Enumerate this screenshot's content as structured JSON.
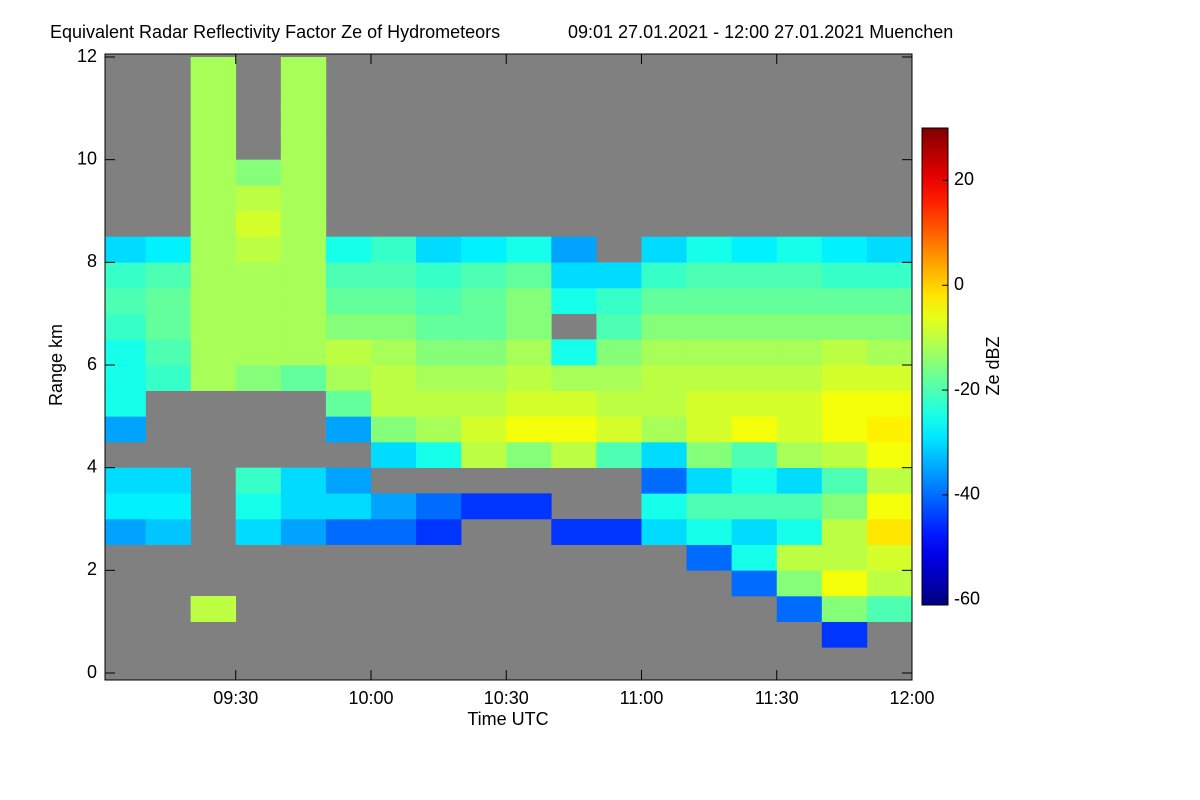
{
  "chart_data": {
    "type": "heatmap",
    "title": "Equivalent Radar Reflectivity Factor Ze of Hydrometeors",
    "subtitle": "09:01 27.01.2021 - 12:00 27.01.2021 Muenchen",
    "x_label": "Time UTC",
    "y_label": "Range km",
    "colorbar_label": "Ze dBZ",
    "background_color": "#808080",
    "colormap": "jet",
    "xlim": [
      541,
      720
    ],
    "xticks": [
      {
        "value": 570,
        "label": "09:30"
      },
      {
        "value": 600,
        "label": "10:00"
      },
      {
        "value": 630,
        "label": "10:30"
      },
      {
        "value": 660,
        "label": "11:00"
      },
      {
        "value": 690,
        "label": "11:30"
      },
      {
        "value": 720,
        "label": "12:00"
      }
    ],
    "ylim": [
      0,
      12
    ],
    "yticks": [
      0,
      2,
      4,
      6,
      8,
      10,
      12
    ],
    "zlim": [
      -61,
      30
    ],
    "zticks": [
      20,
      0,
      -20,
      -40,
      -60
    ],
    "xbins": [
      541,
      550,
      560,
      570,
      580,
      590,
      600,
      610,
      620,
      630,
      640,
      650,
      660,
      670,
      680,
      690,
      700,
      710,
      720
    ],
    "ybins": [
      0,
      0.5,
      1,
      1.5,
      2,
      2.5,
      3,
      3.5,
      4,
      4.5,
      5,
      5.5,
      6,
      6.5,
      7,
      7.5,
      8,
      8.5,
      9,
      9.5,
      10,
      10.5,
      11,
      11.5,
      12
    ],
    "z": [
      [
        null,
        null,
        null,
        null,
        null,
        null,
        null,
        null,
        null,
        null,
        null,
        null,
        null,
        null,
        null,
        null,
        null,
        null
      ],
      [
        null,
        null,
        null,
        null,
        null,
        null,
        null,
        null,
        null,
        null,
        null,
        null,
        null,
        null,
        null,
        null,
        -45,
        null
      ],
      [
        null,
        null,
        -10,
        null,
        null,
        null,
        null,
        null,
        null,
        null,
        null,
        null,
        null,
        null,
        null,
        -40,
        -15,
        -20
      ],
      [
        null,
        null,
        null,
        null,
        null,
        null,
        null,
        null,
        null,
        null,
        null,
        null,
        null,
        null,
        -40,
        -15,
        -5,
        -10
      ],
      [
        null,
        null,
        null,
        null,
        null,
        null,
        null,
        null,
        null,
        null,
        null,
        null,
        null,
        -40,
        -25,
        -10,
        -10,
        -8
      ],
      [
        -35,
        -32,
        null,
        -30,
        -35,
        -40,
        -40,
        -45,
        null,
        null,
        -45,
        -45,
        -30,
        -25,
        -30,
        -25,
        -10,
        -2
      ],
      [
        -28,
        -28,
        null,
        -25,
        -30,
        -30,
        -35,
        -40,
        -45,
        -45,
        null,
        null,
        -25,
        -20,
        -20,
        -20,
        -15,
        -5
      ],
      [
        -30,
        -30,
        null,
        -22,
        -30,
        -35,
        null,
        null,
        null,
        null,
        null,
        null,
        -40,
        -30,
        -25,
        -30,
        -20,
        -10
      ],
      [
        null,
        null,
        null,
        null,
        null,
        null,
        -30,
        -25,
        -10,
        -15,
        -10,
        -20,
        -30,
        -15,
        -20,
        -12,
        -10,
        -5
      ],
      [
        -35,
        null,
        null,
        null,
        null,
        -35,
        -15,
        -12,
        -8,
        -5,
        -5,
        -8,
        -12,
        -8,
        -5,
        -8,
        -5,
        -3
      ],
      [
        -25,
        null,
        null,
        null,
        null,
        -18,
        -10,
        -10,
        -10,
        -8,
        -8,
        -10,
        -10,
        -8,
        -8,
        -8,
        -5,
        -5
      ],
      [
        -25,
        -22,
        -12,
        -15,
        -18,
        -12,
        -10,
        -12,
        -12,
        -10,
        -12,
        -12,
        -10,
        -10,
        -10,
        -10,
        -8,
        -8
      ],
      [
        -25,
        -20,
        -12,
        -12,
        -12,
        -10,
        -12,
        -15,
        -15,
        -12,
        -25,
        -15,
        -12,
        -12,
        -12,
        -12,
        -10,
        -12
      ],
      [
        -22,
        -18,
        -12,
        -12,
        -12,
        -15,
        -15,
        -18,
        -18,
        -15,
        null,
        -20,
        -15,
        -15,
        -15,
        -15,
        -15,
        -15
      ],
      [
        -20,
        -18,
        -12,
        -12,
        -12,
        -18,
        -18,
        -20,
        -18,
        -15,
        -25,
        -22,
        -18,
        -18,
        -18,
        -18,
        -18,
        -18
      ],
      [
        -22,
        -20,
        -12,
        -12,
        -12,
        -20,
        -20,
        -22,
        -20,
        -18,
        -30,
        -30,
        -22,
        -20,
        -20,
        -20,
        -22,
        -22
      ],
      [
        -30,
        -28,
        -12,
        -10,
        -12,
        -25,
        -22,
        -30,
        -28,
        -25,
        -35,
        null,
        -30,
        -25,
        -28,
        -25,
        -28,
        -30
      ],
      [
        null,
        null,
        -12,
        -8,
        -12,
        null,
        null,
        null,
        null,
        null,
        null,
        null,
        null,
        null,
        null,
        null,
        null,
        null
      ],
      [
        null,
        null,
        -12,
        -10,
        -12,
        null,
        null,
        null,
        null,
        null,
        null,
        null,
        null,
        null,
        null,
        null,
        null,
        null
      ],
      [
        null,
        null,
        -12,
        -15,
        -12,
        null,
        null,
        null,
        null,
        null,
        null,
        null,
        null,
        null,
        null,
        null,
        null,
        null
      ],
      [
        null,
        null,
        -12,
        null,
        -12,
        null,
        null,
        null,
        null,
        null,
        null,
        null,
        null,
        null,
        null,
        null,
        null,
        null
      ],
      [
        null,
        null,
        -12,
        null,
        -12,
        null,
        null,
        null,
        null,
        null,
        null,
        null,
        null,
        null,
        null,
        null,
        null,
        null
      ],
      [
        null,
        null,
        -12,
        null,
        -12,
        null,
        null,
        null,
        null,
        null,
        null,
        null,
        null,
        null,
        null,
        null,
        null,
        null
      ],
      [
        null,
        null,
        -12,
        null,
        -12,
        null,
        null,
        null,
        null,
        null,
        null,
        null,
        null,
        null,
        null,
        null,
        null,
        null
      ]
    ]
  }
}
